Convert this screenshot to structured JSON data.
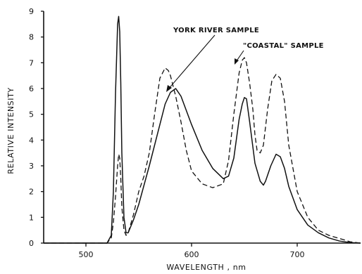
{
  "chart_data": {
    "type": "line",
    "xlabel": "WAVELENGTH , nm",
    "ylabel": "RELATIVE INTENSITY",
    "xlim": [
      460,
      760
    ],
    "ylim": [
      0,
      9
    ],
    "x_ticks": [
      500,
      600,
      700
    ],
    "y_ticks": [
      0,
      1,
      2,
      3,
      4,
      5,
      6,
      7,
      8,
      9
    ],
    "grid": false,
    "annotations": [
      "YORK RIVER SAMPLE",
      "\"COASTAL\" SAMPLE"
    ],
    "series": [
      {
        "name": "YORK RIVER SAMPLE",
        "style": "solid",
        "x": [
          460,
          500,
          520,
          524,
          526,
          528,
          530,
          531,
          532,
          533,
          534,
          536,
          538,
          540,
          545,
          550,
          560,
          570,
          575,
          580,
          585,
          590,
          600,
          610,
          620,
          630,
          635,
          640,
          645,
          648,
          650,
          652,
          655,
          660,
          665,
          668,
          670,
          675,
          680,
          684,
          688,
          692,
          700,
          710,
          720,
          730,
          740,
          750,
          760
        ],
        "y": [
          0,
          0,
          0,
          0.3,
          2.0,
          5.8,
          8.5,
          8.8,
          8.2,
          6.2,
          3.5,
          1.0,
          0.4,
          0.4,
          0.9,
          1.5,
          3.0,
          4.6,
          5.4,
          5.85,
          6.0,
          5.7,
          4.6,
          3.6,
          2.9,
          2.5,
          2.6,
          3.3,
          4.8,
          5.4,
          5.65,
          5.6,
          4.7,
          3.1,
          2.4,
          2.25,
          2.4,
          3.0,
          3.45,
          3.35,
          2.9,
          2.2,
          1.3,
          0.7,
          0.4,
          0.2,
          0.08,
          0.02,
          0.0
        ]
      },
      {
        "name": "\"COASTAL\" SAMPLE",
        "style": "dashed",
        "x": [
          460,
          500,
          520,
          524,
          526,
          528,
          530,
          531,
          532,
          533,
          534,
          536,
          538,
          540,
          545,
          550,
          555,
          560,
          565,
          570,
          575,
          578,
          580,
          585,
          590,
          595,
          600,
          610,
          620,
          630,
          635,
          640,
          645,
          648,
          650,
          652,
          655,
          658,
          660,
          662,
          665,
          668,
          672,
          676,
          680,
          684,
          688,
          692,
          700,
          710,
          720,
          730,
          740,
          745,
          750,
          760
        ],
        "y": [
          0,
          0,
          0,
          0.2,
          0.8,
          1.8,
          3.0,
          3.45,
          3.3,
          2.5,
          1.4,
          0.5,
          0.3,
          0.4,
          1.1,
          2.0,
          2.6,
          3.5,
          5.0,
          6.4,
          6.8,
          6.7,
          6.5,
          5.7,
          4.7,
          3.6,
          2.8,
          2.3,
          2.15,
          2.3,
          3.2,
          5.0,
          6.6,
          7.1,
          7.2,
          7.0,
          6.2,
          5.2,
          4.2,
          3.6,
          3.5,
          3.8,
          5.2,
          6.3,
          6.55,
          6.4,
          5.5,
          3.8,
          2.0,
          1.0,
          0.5,
          0.3,
          0.18,
          0.12,
          0.05,
          0.0
        ]
      }
    ]
  }
}
